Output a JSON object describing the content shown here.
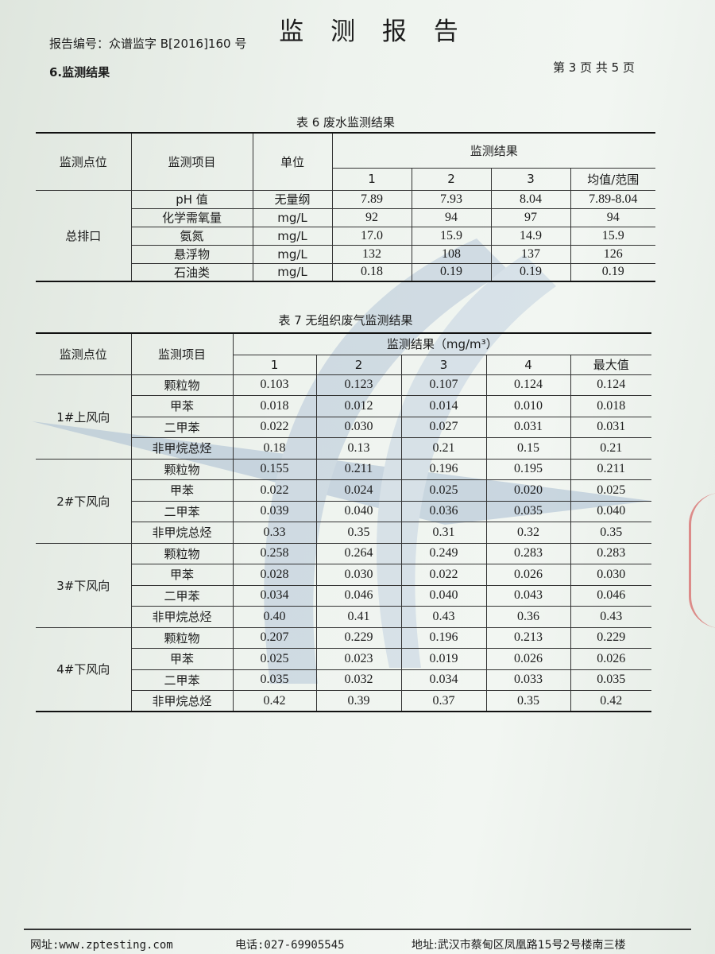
{
  "header": {
    "title": "监 测 报 告",
    "report_number": "报告编号：众谱监字 B[2016]160 号",
    "page_info": "第 3 页 共 5 页",
    "section_title": "6.监测结果"
  },
  "table6": {
    "caption": "表 6 废水监测结果",
    "headers": {
      "point": "监测点位",
      "item": "监测项目",
      "unit": "单位",
      "results": "监测结果",
      "cols": [
        "1",
        "2",
        "3",
        "均值/范围"
      ]
    },
    "point": "总排口",
    "rows": [
      {
        "item": "pH 值",
        "unit": "无量纲",
        "values": [
          "7.89",
          "7.93",
          "8.04",
          "7.89-8.04"
        ]
      },
      {
        "item": "化学需氧量",
        "unit": "mg/L",
        "values": [
          "92",
          "94",
          "97",
          "94"
        ]
      },
      {
        "item": "氨氮",
        "unit": "mg/L",
        "values": [
          "17.0",
          "15.9",
          "14.9",
          "15.9"
        ]
      },
      {
        "item": "悬浮物",
        "unit": "mg/L",
        "values": [
          "132",
          "108",
          "137",
          "126"
        ]
      },
      {
        "item": "石油类",
        "unit": "mg/L",
        "values": [
          "0.18",
          "0.19",
          "0.19",
          "0.19"
        ]
      }
    ]
  },
  "table7": {
    "caption": "表 7 无组织废气监测结果",
    "headers": {
      "point": "监测点位",
      "item": "监测项目",
      "results": "监测结果（mg/m³）",
      "cols": [
        "1",
        "2",
        "3",
        "4",
        "最大值"
      ]
    },
    "groups": [
      {
        "point": "1#上风向",
        "rows": [
          {
            "item": "颗粒物",
            "values": [
              "0.103",
              "0.123",
              "0.107",
              "0.124",
              "0.124"
            ]
          },
          {
            "item": "甲苯",
            "values": [
              "0.018",
              "0.012",
              "0.014",
              "0.010",
              "0.018"
            ]
          },
          {
            "item": "二甲苯",
            "values": [
              "0.022",
              "0.030",
              "0.027",
              "0.031",
              "0.031"
            ]
          },
          {
            "item": "非甲烷总烃",
            "values": [
              "0.18",
              "0.13",
              "0.21",
              "0.15",
              "0.21"
            ]
          }
        ]
      },
      {
        "point": "2#下风向",
        "rows": [
          {
            "item": "颗粒物",
            "values": [
              "0.155",
              "0.211",
              "0.196",
              "0.195",
              "0.211"
            ]
          },
          {
            "item": "甲苯",
            "values": [
              "0.022",
              "0.024",
              "0.025",
              "0.020",
              "0.025"
            ]
          },
          {
            "item": "二甲苯",
            "values": [
              "0.039",
              "0.040",
              "0.036",
              "0.035",
              "0.040"
            ]
          },
          {
            "item": "非甲烷总烃",
            "values": [
              "0.33",
              "0.35",
              "0.31",
              "0.32",
              "0.35"
            ]
          }
        ]
      },
      {
        "point": "3#下风向",
        "rows": [
          {
            "item": "颗粒物",
            "values": [
              "0.258",
              "0.264",
              "0.249",
              "0.283",
              "0.283"
            ]
          },
          {
            "item": "甲苯",
            "values": [
              "0.028",
              "0.030",
              "0.022",
              "0.026",
              "0.030"
            ]
          },
          {
            "item": "二甲苯",
            "values": [
              "0.034",
              "0.046",
              "0.040",
              "0.043",
              "0.046"
            ]
          },
          {
            "item": "非甲烷总烃",
            "values": [
              "0.40",
              "0.41",
              "0.43",
              "0.36",
              "0.43"
            ]
          }
        ]
      },
      {
        "point": "4#下风向",
        "rows": [
          {
            "item": "颗粒物",
            "values": [
              "0.207",
              "0.229",
              "0.196",
              "0.213",
              "0.229"
            ]
          },
          {
            "item": "甲苯",
            "values": [
              "0.025",
              "0.023",
              "0.019",
              "0.026",
              "0.026"
            ]
          },
          {
            "item": "二甲苯",
            "values": [
              "0.035",
              "0.032",
              "0.034",
              "0.033",
              "0.035"
            ]
          },
          {
            "item": "非甲烷总烃",
            "values": [
              "0.42",
              "0.39",
              "0.37",
              "0.35",
              "0.42"
            ]
          }
        ]
      }
    ]
  },
  "footer": {
    "website": "网址:www.zptesting.com",
    "phone": "电话:027-69905545",
    "address": "地址:武汉市蔡甸区凤凰路15号2号楼南三楼"
  },
  "colors": {
    "paper": "#eef3ee",
    "watermark": "#8fa9c4",
    "seal": "#d54a4a"
  }
}
